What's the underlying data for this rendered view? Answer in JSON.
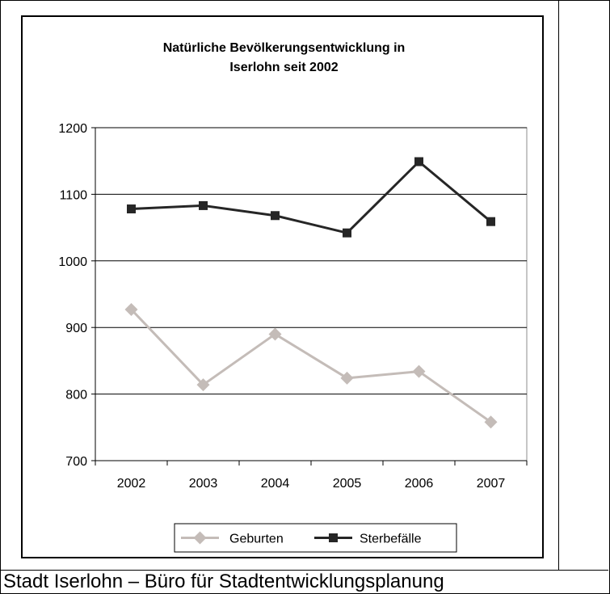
{
  "chart_data": {
    "type": "line",
    "title": "Natürliche Bevölkerungsentwicklung in Iserlohn seit 2002",
    "title_lines": [
      "Natürliche Bevölkerungsentwicklung in",
      "Iserlohn seit 2002"
    ],
    "x": [
      "2002",
      "2003",
      "2004",
      "2005",
      "2006",
      "2007"
    ],
    "ylim": [
      700,
      1200
    ],
    "yticks": [
      "700",
      "800",
      "900",
      "1000",
      "1100",
      "1200"
    ],
    "grid": true,
    "legend_position": "bottom",
    "series": [
      {
        "name": "Geburten",
        "values": [
          927,
          814,
          890,
          824,
          834,
          758
        ],
        "color": "#c4bcb8",
        "marker": "diamond"
      },
      {
        "name": "Sterbefälle",
        "values": [
          1078,
          1083,
          1068,
          1042,
          1149,
          1059
        ],
        "color": "#262626",
        "marker": "square"
      }
    ]
  },
  "caption": "Stadt Iserlohn – Büro für Stadtentwicklungsplanung"
}
